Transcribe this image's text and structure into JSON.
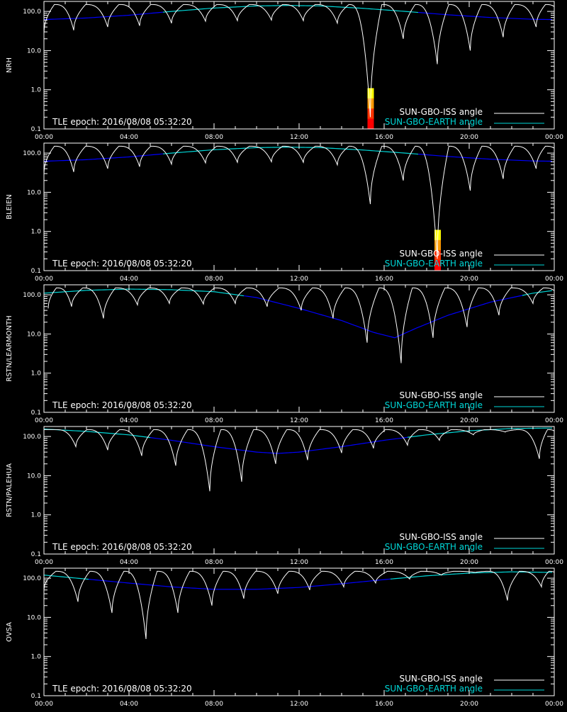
{
  "colors": {
    "background": "#000000",
    "axes": "#ffffff",
    "iss_curve": "#ffffff",
    "earth_curve_near": "#00d8d8",
    "earth_curve_far": "#0000ff",
    "shading": [
      "#ffff00",
      "#ff9900",
      "#ff3300",
      "#ff0000"
    ]
  },
  "x_tick_labels": [
    "00:00",
    "04:00",
    "08:00",
    "12:00",
    "16:00",
    "20:00",
    "00:00"
  ],
  "y_tick_labels": [
    "0.1",
    "1.0",
    "10.0",
    "100.0"
  ],
  "legend": {
    "iss_label": "SUN-GBO-ISS angle",
    "earth_label": "SUN-GBO-EARTH angle"
  },
  "epoch_text": "TLE epoch: 2016/08/08 05:32:20",
  "chart_data": [
    {
      "type": "line",
      "ylabel": "NRH",
      "xlim": [
        0,
        24
      ],
      "ylim": [
        0.1,
        180
      ],
      "y_scale": "log",
      "series": [
        {
          "name": "SUN-GBO-ISS angle",
          "period_h": 1.55,
          "phase_h": 0.0,
          "x_min": [
            0.0,
            1.4,
            3.0,
            4.5,
            6.0,
            7.6,
            9.1,
            10.7,
            12.2,
            13.8,
            15.35,
            16.9,
            18.5,
            20.05,
            21.6,
            23.15
          ],
          "y_min": [
            28,
            33,
            40,
            43,
            50,
            56,
            58,
            60,
            58,
            50,
            0.2,
            20,
            4.5,
            10,
            22,
            40
          ]
        },
        {
          "name": "SUN-GBO-EARTH angle",
          "x": [
            0,
            2,
            4,
            6,
            8,
            10,
            11.5,
            13,
            15,
            17,
            19,
            21,
            23,
            24
          ],
          "y": [
            62,
            68,
            80,
            100,
            122,
            138,
            142,
            138,
            120,
            100,
            82,
            70,
            63,
            62
          ]
        }
      ],
      "shaded_event": {
        "x": 15.35,
        "y_top": 1.1
      }
    },
    {
      "type": "line",
      "ylabel": "BLEIEN",
      "xlim": [
        0,
        24
      ],
      "ylim": [
        0.1,
        180
      ],
      "y_scale": "log",
      "series": [
        {
          "name": "SUN-GBO-ISS angle",
          "period_h": 1.55,
          "phase_h": 0.0,
          "x_min": [
            0.0,
            1.4,
            3.0,
            4.5,
            6.0,
            7.6,
            9.1,
            10.7,
            12.2,
            13.8,
            15.35,
            16.9,
            18.5,
            20.05,
            21.6,
            23.15
          ],
          "y_min": [
            30,
            33,
            40,
            45,
            52,
            56,
            58,
            60,
            58,
            50,
            5,
            20,
            0.2,
            11,
            22,
            40
          ]
        },
        {
          "name": "SUN-GBO-EARTH angle",
          "x": [
            0,
            2,
            4,
            6,
            8,
            10,
            11.5,
            13,
            15,
            17,
            19,
            21,
            23,
            24
          ],
          "y": [
            62,
            68,
            80,
            100,
            122,
            138,
            142,
            138,
            120,
            100,
            82,
            70,
            63,
            62
          ]
        }
      ],
      "shaded_event": {
        "x": 18.5,
        "y_top": 1.1
      }
    },
    {
      "type": "line",
      "ylabel": "RSTN/LEARMONTH",
      "xlim": [
        0,
        24
      ],
      "ylim": [
        0.1,
        180
      ],
      "y_scale": "log",
      "series": [
        {
          "name": "SUN-GBO-ISS angle",
          "period_h": 1.55,
          "phase_h": 0.4,
          "x_min": [
            0.2,
            1.3,
            2.8,
            4.4,
            5.9,
            7.5,
            9.0,
            10.5,
            12.1,
            13.6,
            15.2,
            16.8,
            18.3,
            19.9,
            21.4,
            23.0
          ],
          "y_min": [
            45,
            50,
            25,
            55,
            60,
            58,
            60,
            50,
            40,
            25,
            6,
            1.8,
            8,
            15,
            30,
            60
          ]
        },
        {
          "name": "SUN-GBO-EARTH angle",
          "x": [
            0,
            2,
            4,
            6,
            8,
            10,
            12,
            14,
            15.5,
            16.5,
            17.5,
            19,
            21,
            23,
            24
          ],
          "y": [
            110,
            130,
            140,
            135,
            120,
            85,
            45,
            22,
            11,
            8,
            14,
            30,
            65,
            110,
            130
          ]
        }
      ]
    },
    {
      "type": "line",
      "ylabel": "RSTN/PALEHUA",
      "xlim": [
        0,
        24
      ],
      "ylim": [
        0.1,
        180
      ],
      "y_scale": "log",
      "series": [
        {
          "name": "SUN-GBO-ISS angle",
          "period_h": 1.55,
          "phase_h": 0.2,
          "x_min": [
            0.0,
            1.5,
            3.0,
            4.6,
            6.2,
            7.8,
            9.3,
            10.9,
            12.4,
            14.0,
            15.5,
            17.1,
            18.6,
            20.2,
            21.7,
            23.3
          ],
          "y_min": [
            150,
            55,
            45,
            32,
            18,
            4,
            7,
            20,
            25,
            38,
            50,
            60,
            80,
            110,
            130,
            27
          ]
        },
        {
          "name": "SUN-GBO-EARTH angle",
          "x": [
            0,
            2,
            4,
            6,
            8,
            10,
            11,
            12,
            14,
            16,
            18,
            20,
            22,
            24
          ],
          "y": [
            155,
            135,
            110,
            80,
            55,
            40,
            37,
            40,
            55,
            80,
            110,
            140,
            160,
            165
          ]
        }
      ]
    },
    {
      "type": "line",
      "ylabel": "OVSA",
      "xlim": [
        0,
        24
      ],
      "ylim": [
        0.1,
        180
      ],
      "y_scale": "log",
      "series": [
        {
          "name": "SUN-GBO-ISS angle",
          "period_h": 1.55,
          "phase_h": 0.1,
          "x_min": [
            0.0,
            1.6,
            3.2,
            4.8,
            6.3,
            7.9,
            9.4,
            11.0,
            12.5,
            14.1,
            15.6,
            17.2,
            18.7,
            20.3,
            21.8,
            23.4
          ],
          "y_min": [
            50,
            25,
            13,
            2.8,
            13,
            20,
            30,
            40,
            50,
            60,
            75,
            95,
            120,
            140,
            27,
            60
          ]
        },
        {
          "name": "SUN-GBO-EARTH angle",
          "x": [
            0,
            2,
            4,
            6,
            8,
            10,
            12,
            14,
            16,
            18,
            20,
            22,
            24
          ],
          "y": [
            120,
            95,
            75,
            60,
            52,
            52,
            58,
            72,
            92,
            115,
            135,
            145,
            140
          ]
        }
      ]
    }
  ]
}
